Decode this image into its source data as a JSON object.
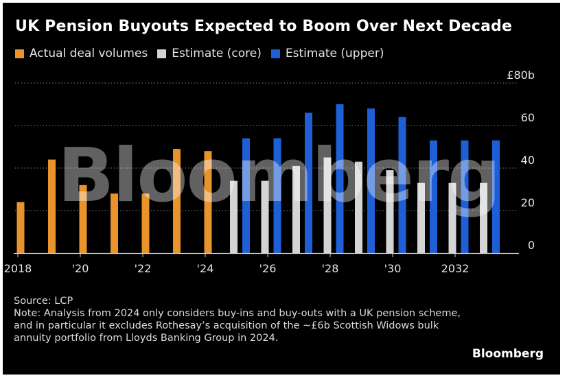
{
  "title": "UK Pension Buyouts Expected to Boom Over Next Decade",
  "legend": [
    {
      "label": "Actual deal volumes",
      "color": "#e8932c"
    },
    {
      "label": "Estimate (core)",
      "color": "#d4d4d4"
    },
    {
      "label": "Estimate (upper)",
      "color": "#1f5fd6"
    }
  ],
  "source": "Source: LCP",
  "note": "Note: Analysis from 2024 only considers buy-ins and buy-outs with a UK pension scheme, and in particular it excludes Rothesay’s acquisition of the ~£6b Scottish Widows bulk annuity portfolio from Lloyds Banking Group in 2024.",
  "watermark": "Bloomberg",
  "brand": "Bloomberg",
  "chart_data": {
    "type": "bar",
    "x_tick_labels": [
      "2018",
      "'20",
      "'22",
      "'24",
      "'26",
      "'28",
      "'30",
      "2032"
    ],
    "y_tick_labels": [
      "£80b",
      "60",
      "40",
      "20",
      "0"
    ],
    "ylim": [
      0,
      80
    ],
    "grid": true,
    "legend_position": "top-left",
    "actual": [
      {
        "year": 2018,
        "value": 24
      },
      {
        "year": 2019,
        "value": 44
      },
      {
        "year": 2020,
        "value": 32
      },
      {
        "year": 2021,
        "value": 28
      },
      {
        "year": 2022,
        "value": 28
      },
      {
        "year": 2023,
        "value": 49
      },
      {
        "year": 2024,
        "value": 48
      }
    ],
    "estimate": [
      {
        "year": 2025,
        "core": 34,
        "upper": 54
      },
      {
        "year": 2026,
        "core": 34,
        "upper": 54
      },
      {
        "year": 2027,
        "core": 41,
        "upper": 66
      },
      {
        "year": 2028,
        "core": 45,
        "upper": 70
      },
      {
        "year": 2029,
        "core": 43,
        "upper": 68
      },
      {
        "year": 2030,
        "core": 39,
        "upper": 64
      },
      {
        "year": 2031,
        "core": 33,
        "upper": 53
      },
      {
        "year": 2032,
        "core": 33,
        "upper": 53
      },
      {
        "year": 2033,
        "core": 33,
        "upper": 53
      }
    ]
  }
}
